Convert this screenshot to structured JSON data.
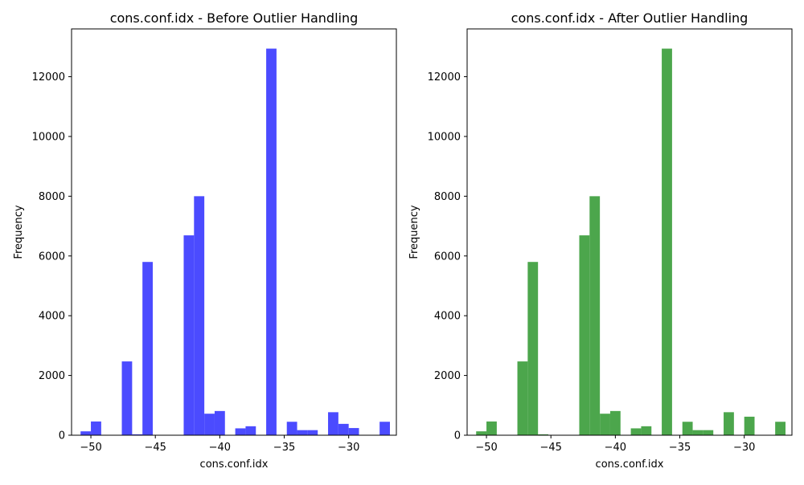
{
  "chart_data": [
    {
      "type": "bar",
      "title": "cons.conf.idx - Before Outlier Handling",
      "xlabel": "cons.conf.idx",
      "ylabel": "Frequency",
      "xlim": [
        -51.5,
        -26.3
      ],
      "ylim": [
        0,
        13600
      ],
      "xticks": [
        -50,
        -45,
        -40,
        -35,
        -30
      ],
      "yticks": [
        0,
        2000,
        4000,
        6000,
        8000,
        10000,
        12000
      ],
      "color": "#4b4bff",
      "bin_width": 0.8,
      "bins": [
        {
          "x0": -50.8,
          "value": 130
        },
        {
          "x0": -50.0,
          "value": 460
        },
        {
          "x0": -47.6,
          "value": 2470
        },
        {
          "x0": -46.8,
          "value": 30
        },
        {
          "x0": -46.0,
          "value": 5800
        },
        {
          "x0": -45.2,
          "value": 10
        },
        {
          "x0": -42.8,
          "value": 6690
        },
        {
          "x0": -42.0,
          "value": 8000
        },
        {
          "x0": -41.2,
          "value": 720
        },
        {
          "x0": -40.4,
          "value": 810
        },
        {
          "x0": -38.8,
          "value": 230
        },
        {
          "x0": -38.0,
          "value": 300
        },
        {
          "x0": -36.4,
          "value": 12940
        },
        {
          "x0": -34.8,
          "value": 450
        },
        {
          "x0": -34.0,
          "value": 170
        },
        {
          "x0": -33.2,
          "value": 170
        },
        {
          "x0": -31.6,
          "value": 770
        },
        {
          "x0": -30.8,
          "value": 380
        },
        {
          "x0": -30.0,
          "value": 240
        },
        {
          "x0": -27.6,
          "value": 450
        }
      ]
    },
    {
      "type": "bar",
      "title": "cons.conf.idx - After Outlier Handling",
      "xlabel": "cons.conf.idx",
      "ylabel": "Frequency",
      "xlim": [
        -51.5,
        -26.3
      ],
      "ylim": [
        0,
        13600
      ],
      "xticks": [
        -50,
        -45,
        -40,
        -35,
        -30
      ],
      "yticks": [
        0,
        2000,
        4000,
        6000,
        8000,
        10000,
        12000
      ],
      "color": "#4ca64c",
      "bin_width": 0.8,
      "bins": [
        {
          "x0": -50.8,
          "value": 130
        },
        {
          "x0": -50.0,
          "value": 460
        },
        {
          "x0": -47.6,
          "value": 2470
        },
        {
          "x0": -46.8,
          "value": 5800
        },
        {
          "x0": -46.0,
          "value": 30
        },
        {
          "x0": -45.2,
          "value": 10
        },
        {
          "x0": -42.8,
          "value": 6690
        },
        {
          "x0": -42.0,
          "value": 8000
        },
        {
          "x0": -41.2,
          "value": 720
        },
        {
          "x0": -40.4,
          "value": 810
        },
        {
          "x0": -38.8,
          "value": 230
        },
        {
          "x0": -38.0,
          "value": 300
        },
        {
          "x0": -36.4,
          "value": 12940
        },
        {
          "x0": -34.8,
          "value": 450
        },
        {
          "x0": -34.0,
          "value": 170
        },
        {
          "x0": -33.2,
          "value": 170
        },
        {
          "x0": -31.6,
          "value": 770
        },
        {
          "x0": -30.0,
          "value": 620
        },
        {
          "x0": -27.6,
          "value": 450
        }
      ]
    }
  ]
}
